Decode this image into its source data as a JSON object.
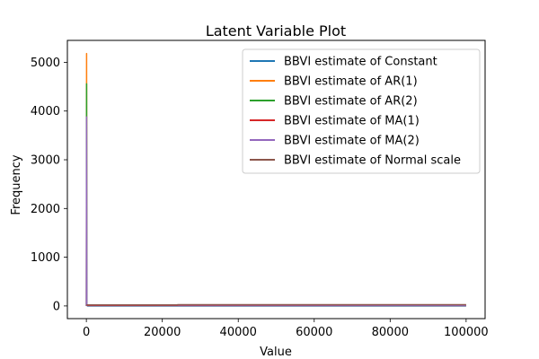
{
  "chart_data": {
    "type": "line",
    "title": "Latent Variable Plot",
    "xlabel": "Value",
    "ylabel": "Frequency",
    "xlim": [
      -5000,
      105000
    ],
    "ylim": [
      -260,
      5450
    ],
    "xticks": [
      0,
      20000,
      40000,
      60000,
      80000,
      100000
    ],
    "yticks": [
      0,
      1000,
      2000,
      3000,
      4000,
      5000
    ],
    "legend_position": "top-right",
    "series": [
      {
        "name": "BBVI estimate of Constant",
        "color": "#1f77b4",
        "x": [
          0,
          150,
          300,
          100000
        ],
        "y": [
          0,
          30,
          0,
          0
        ]
      },
      {
        "name": "BBVI estimate of AR(1)",
        "color": "#ff7f0e",
        "x": [
          0,
          60,
          120,
          100000
        ],
        "y": [
          0,
          5180,
          20,
          15
        ]
      },
      {
        "name": "BBVI estimate of AR(2)",
        "color": "#2ca02c",
        "x": [
          0,
          60,
          120,
          100000
        ],
        "y": [
          0,
          4560,
          15,
          10
        ]
      },
      {
        "name": "BBVI estimate of MA(1)",
        "color": "#d62728",
        "x": [
          0,
          150,
          300,
          100000
        ],
        "y": [
          0,
          20,
          10,
          10
        ]
      },
      {
        "name": "BBVI estimate of MA(2)",
        "color": "#9467bd",
        "x": [
          0,
          60,
          120,
          100000
        ],
        "y": [
          0,
          3880,
          20,
          10
        ]
      },
      {
        "name": "BBVI estimate of Normal scale",
        "color": "#8c564b",
        "x": [
          0,
          24000,
          24000,
          100000
        ],
        "y": [
          20,
          20,
          25,
          25
        ]
      }
    ]
  }
}
